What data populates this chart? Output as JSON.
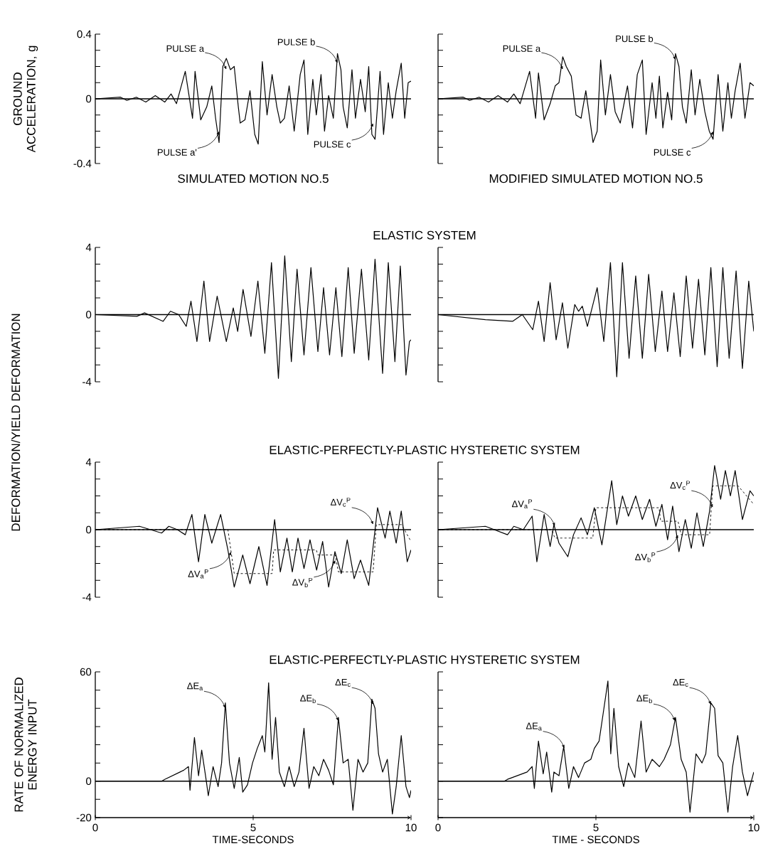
{
  "chart_data": [
    {
      "type": "line",
      "title": "SIMULATED MOTION NO.5",
      "ylabel": "GROUND ACCELERATION, g",
      "xlim": [
        0,
        10
      ],
      "ylim": [
        -0.4,
        0.4
      ],
      "yticks": [
        -0.4,
        {
          "value": -0.3,
          "label": null
        },
        {
          "value": -0.2,
          "label": null
        },
        {
          "value": -0.1,
          "label": null
        },
        0,
        {
          "value": 0.1,
          "label": null
        },
        {
          "value": 0.2,
          "label": null
        },
        {
          "value": 0.3,
          "label": null
        },
        0.4
      ],
      "tick_labels": "y",
      "ref_lines": [
        {
          "axis": "y",
          "value": 0
        }
      ],
      "annotations": [
        {
          "text": "PULSE a",
          "x": 4.15,
          "y": 0.18
        },
        {
          "text": "PULSE a'",
          "x": 3.92,
          "y": -0.2
        },
        {
          "text": "PULSE b",
          "x": 7.67,
          "y": 0.22
        },
        {
          "text": "PULSE c",
          "x": 8.8,
          "y": -0.15
        }
      ],
      "series": [
        {
          "color": "#000000",
          "x": [
            0,
            0.8,
            1.0,
            1.3,
            1.6,
            1.9,
            2.2,
            2.4,
            2.57,
            2.85,
            3.08,
            3.16,
            3.34,
            3.53,
            3.69,
            3.81,
            3.92,
            4.04,
            4.15,
            4.28,
            4.4,
            4.53,
            4.59,
            4.74,
            4.9,
            5.05,
            5.16,
            5.29,
            5.44,
            5.6,
            5.75,
            5.86,
            5.99,
            6.14,
            6.3,
            6.49,
            6.61,
            6.73,
            6.89,
            7.0,
            7.15,
            7.26,
            7.39,
            7.54,
            7.67,
            7.78,
            7.85,
            7.98,
            8.13,
            8.24,
            8.4,
            8.55,
            8.66,
            8.76,
            8.86,
            9.02,
            9.13,
            9.28,
            9.41,
            9.53,
            9.69,
            9.8,
            9.91,
            10
          ],
          "values": [
            0,
            0.01,
            -0.01,
            0.01,
            -0.02,
            0.02,
            -0.02,
            0.03,
            -0.03,
            0.17,
            -0.12,
            0.17,
            -0.13,
            -0.05,
            0.08,
            -0.12,
            -0.27,
            0.2,
            0.25,
            0.18,
            0.2,
            -0.05,
            -0.15,
            -0.13,
            0.05,
            -0.22,
            -0.28,
            0.23,
            -0.1,
            0.15,
            -0.05,
            -0.15,
            -0.12,
            0.08,
            -0.2,
            0.15,
            0.24,
            -0.22,
            0.12,
            -0.1,
            0.15,
            -0.2,
            0.02,
            -0.12,
            0.28,
            0.18,
            -0.05,
            -0.18,
            0.18,
            -0.12,
            0.12,
            -0.08,
            0.2,
            -0.22,
            -0.25,
            0.17,
            -0.22,
            0.1,
            -0.12,
            0.05,
            0.22,
            -0.12,
            0.1,
            0.11
          ]
        }
      ]
    },
    {
      "type": "line",
      "title": "MODIFIED SIMULATED MOTION NO.5",
      "xlim": [
        0,
        10
      ],
      "ylim": [
        -0.4,
        0.4
      ],
      "yticks": [
        -0.4,
        {
          "value": -0.3,
          "label": null
        },
        {
          "value": -0.2,
          "label": null
        },
        {
          "value": -0.1,
          "label": null
        },
        0,
        {
          "value": 0.1,
          "label": null
        },
        {
          "value": 0.2,
          "label": null
        },
        {
          "value": 0.3,
          "label": null
        },
        0.4
      ],
      "tick_labels": false,
      "ref_lines": [
        {
          "axis": "y",
          "value": 0
        }
      ],
      "annotations": [
        {
          "text": "PULSE a",
          "x": 3.95,
          "y": 0.18
        },
        {
          "text": "PULSE b",
          "x": 7.52,
          "y": 0.24
        },
        {
          "text": "PULSE c",
          "x": 8.71,
          "y": -0.2
        }
      ],
      "series": [
        {
          "color": "#000000",
          "x": [
            0,
            0.8,
            1.0,
            1.3,
            1.6,
            1.9,
            2.2,
            2.4,
            2.6,
            2.9,
            3.09,
            3.18,
            3.36,
            3.55,
            3.71,
            3.83,
            3.95,
            4.06,
            4.22,
            4.37,
            4.53,
            4.68,
            4.91,
            5.04,
            5.15,
            5.3,
            5.46,
            5.61,
            5.77,
            6.0,
            6.16,
            6.31,
            6.47,
            6.59,
            6.78,
            6.9,
            7.01,
            7.12,
            7.27,
            7.4,
            7.52,
            7.63,
            7.74,
            7.86,
            8.02,
            8.14,
            8.29,
            8.45,
            8.59,
            8.71,
            8.87,
            9.02,
            9.18,
            9.29,
            9.41,
            9.57,
            9.72,
            9.88,
            10
          ],
          "values": [
            0,
            0.01,
            -0.01,
            0.01,
            -0.02,
            0.02,
            -0.02,
            0.03,
            -0.03,
            0.17,
            -0.12,
            0.16,
            -0.13,
            -0.03,
            0.08,
            0.1,
            0.26,
            0.2,
            0.14,
            -0.1,
            -0.12,
            0.05,
            -0.27,
            -0.2,
            0.24,
            -0.1,
            0.15,
            -0.08,
            -0.15,
            0.08,
            -0.18,
            0.15,
            0.24,
            -0.22,
            0.1,
            -0.12,
            0.14,
            -0.18,
            0.04,
            -0.13,
            0.28,
            0.2,
            -0.05,
            -0.15,
            0.18,
            -0.1,
            0.12,
            -0.08,
            -0.2,
            -0.25,
            0.15,
            -0.2,
            0.1,
            -0.12,
            0.05,
            0.22,
            -0.12,
            0.1,
            0.08
          ]
        }
      ]
    },
    {
      "type": "line",
      "title": "ELASTIC SYSTEM",
      "ylabel": "DEFORMATION/YIELD DEFORMATION",
      "xlim": [
        0,
        10
      ],
      "ylim": [
        -4,
        4
      ],
      "yticks": [
        -4,
        {
          "value": -3,
          "label": null
        },
        {
          "value": -2,
          "label": null
        },
        {
          "value": -1,
          "label": null
        },
        0,
        {
          "value": 1,
          "label": null
        },
        {
          "value": 2,
          "label": null
        },
        {
          "value": 3,
          "label": null
        },
        4
      ],
      "tick_labels": "y",
      "ref_lines": [
        {
          "axis": "y",
          "value": 0
        }
      ],
      "series": [
        {
          "color": "#000000",
          "x": [
            0,
            1.32,
            1.56,
            2.15,
            2.38,
            2.64,
            2.88,
            3.03,
            3.22,
            3.44,
            3.62,
            3.86,
            4.15,
            4.37,
            4.51,
            4.68,
            4.93,
            5.15,
            5.37,
            5.58,
            5.8,
            6.0,
            6.21,
            6.39,
            6.61,
            6.83,
            7.05,
            7.23,
            7.42,
            7.62,
            7.81,
            8.01,
            8.2,
            8.43,
            8.66,
            8.86,
            9.1,
            9.28,
            9.49,
            9.66,
            9.84,
            9.95,
            10
          ],
          "values": [
            0,
            -0.1,
            0.1,
            -0.4,
            0.2,
            0,
            -0.7,
            0.8,
            -1.6,
            2.0,
            -1.6,
            1.1,
            -1.6,
            0.4,
            -1.0,
            1.5,
            -1.3,
            2.0,
            -2.3,
            3.1,
            -3.8,
            3.5,
            -2.8,
            2.7,
            -2.4,
            2.8,
            -2.2,
            1.6,
            -2.4,
            1.6,
            -2.5,
            2.8,
            -2.3,
            2.7,
            -2.7,
            3.3,
            -3.5,
            3.1,
            -2.8,
            2.9,
            -3.6,
            -1.6,
            -1.5
          ]
        }
      ]
    },
    {
      "type": "line",
      "xlim": [
        0,
        10
      ],
      "ylim": [
        -4,
        4
      ],
      "yticks": [
        -4,
        {
          "value": -3,
          "label": null
        },
        {
          "value": -2,
          "label": null
        },
        {
          "value": -1,
          "label": null
        },
        0,
        {
          "value": 1,
          "label": null
        },
        {
          "value": 2,
          "label": null
        },
        {
          "value": 3,
          "label": null
        },
        4
      ],
      "tick_labels": false,
      "ref_lines": [
        {
          "axis": "y",
          "value": 0
        }
      ],
      "series": [
        {
          "color": "#000000",
          "x": [
            0,
            1.5,
            2.36,
            2.67,
            3.0,
            3.18,
            3.36,
            3.55,
            3.74,
            3.94,
            4.11,
            4.33,
            4.45,
            4.57,
            4.73,
            5.04,
            5.25,
            5.46,
            5.66,
            5.84,
            6.05,
            6.26,
            6.47,
            6.67,
            6.88,
            7.09,
            7.27,
            7.47,
            7.67,
            7.86,
            8.06,
            8.25,
            8.45,
            8.64,
            8.84,
            9.02,
            9.22,
            9.44,
            9.64,
            9.84,
            10
          ],
          "values": [
            0,
            -0.3,
            -0.4,
            0,
            -0.9,
            0.8,
            -1.6,
            1.9,
            -1.5,
            0.7,
            -2.0,
            0.6,
            0.2,
            0.5,
            -0.7,
            1.6,
            -1.6,
            3.1,
            -3.7,
            3.1,
            -2.6,
            2.3,
            -2.6,
            2.4,
            -2.2,
            1.4,
            -2.2,
            1.3,
            -2.5,
            2.3,
            -2.0,
            2.1,
            -2.4,
            2.8,
            -3.1,
            2.8,
            -2.6,
            2.6,
            -3.2,
            2.0,
            -1.0
          ]
        }
      ]
    },
    {
      "type": "line",
      "title": "ELASTIC-PERFECTLY-PLASTIC HYSTERETIC SYSTEM",
      "xlim": [
        0,
        10
      ],
      "ylim": [
        -4,
        4
      ],
      "yticks": [
        -4,
        {
          "value": -3,
          "label": null
        },
        {
          "value": -2,
          "label": null
        },
        {
          "value": -1,
          "label": null
        },
        0,
        {
          "value": 1,
          "label": null
        },
        {
          "value": 2,
          "label": null
        },
        {
          "value": 3,
          "label": null
        },
        4
      ],
      "tick_labels": "y",
      "ref_lines": [
        {
          "axis": "y",
          "value": 0
        }
      ],
      "annotations": [
        {
          "text": "ΔV$_{a}$$^{P}$",
          "x": 4.3,
          "y": -1.3
        },
        {
          "text": "ΔV$_{b}$$^{P}$",
          "x": 7.6,
          "y": -1.8
        },
        {
          "text": "ΔV$_{c}$$^{P}$",
          "x": 8.8,
          "y": 0.3
        }
      ],
      "series": [
        {
          "color": "#000000",
          "x": [
            0,
            1.4,
            2.1,
            2.33,
            2.6,
            2.85,
            3.06,
            3.27,
            3.47,
            3.69,
            3.97,
            4.2,
            4.4,
            4.67,
            4.9,
            5.18,
            5.44,
            5.68,
            5.86,
            6.07,
            6.24,
            6.42,
            6.61,
            6.8,
            7.01,
            7.2,
            7.39,
            7.59,
            7.79,
            7.98,
            8.2,
            8.4,
            8.66,
            8.94,
            9.18,
            9.33,
            9.53,
            9.69,
            9.88,
            10
          ],
          "values": [
            0,
            0.2,
            -0.2,
            0.2,
            0,
            -0.3,
            0.9,
            -1.9,
            0.9,
            -0.8,
            0.9,
            -1.2,
            -3.4,
            -1.5,
            -3.2,
            -1.0,
            -3.3,
            0.6,
            -2.5,
            -0.5,
            -2.5,
            -0.5,
            -2.3,
            -0.6,
            -2.4,
            -0.7,
            -3.4,
            -1.3,
            -2.6,
            -0.6,
            -2.9,
            -1.8,
            -3.3,
            1.3,
            -0.5,
            1.1,
            -0.8,
            1.1,
            -1.9,
            -1.2
          ]
        },
        {
          "color": "#000000",
          "line_style": "dashed",
          "x": [
            0,
            4.2,
            4.4,
            5.6,
            5.65,
            7.0,
            7.05,
            7.6,
            7.7,
            8.8,
            8.9,
            9.7,
            10
          ],
          "values": [
            0,
            0,
            -2.6,
            -2.6,
            -1.2,
            -1.2,
            -1.5,
            -1.5,
            -2.5,
            -2.5,
            0.3,
            0.3,
            -0.7
          ]
        }
      ]
    },
    {
      "type": "line",
      "xlim": [
        0,
        10
      ],
      "ylim": [
        -4,
        4
      ],
      "yticks": [
        -4,
        {
          "value": -3,
          "label": null
        },
        {
          "value": -2,
          "label": null
        },
        {
          "value": -1,
          "label": null
        },
        0,
        {
          "value": 1,
          "label": null
        },
        {
          "value": 2,
          "label": null
        },
        {
          "value": 3,
          "label": null
        },
        4
      ],
      "tick_labels": false,
      "ref_lines": [
        {
          "axis": "y",
          "value": 0
        }
      ],
      "annotations": [
        {
          "text": "ΔV$_{a}$$^{P}$",
          "x": 3.7,
          "y": 0.2
        },
        {
          "text": "ΔV$_{b}$$^{P}$",
          "x": 7.6,
          "y": -0.3
        },
        {
          "text": "ΔV$_{c}$$^{P}$",
          "x": 8.7,
          "y": 1.3
        }
      ],
      "series": [
        {
          "color": "#000000",
          "x": [
            0,
            1.5,
            2.2,
            2.4,
            2.7,
            2.98,
            3.13,
            3.36,
            3.55,
            3.67,
            3.83,
            4.11,
            4.29,
            4.53,
            4.73,
            4.95,
            5.19,
            5.5,
            5.66,
            5.84,
            6.03,
            6.26,
            6.47,
            6.7,
            6.9,
            7.09,
            7.27,
            7.43,
            7.63,
            7.83,
            8.02,
            8.2,
            8.4,
            8.6,
            8.76,
            8.95,
            9.1,
            9.26,
            9.41,
            9.64,
            9.88,
            10
          ],
          "values": [
            0,
            0.2,
            -0.3,
            0.2,
            0,
            0.8,
            -1.9,
            0.9,
            -1.0,
            0.3,
            -0.8,
            -1.6,
            -0.3,
            0.7,
            -0.3,
            1.3,
            -0.9,
            2.9,
            0.3,
            2.0,
            0.8,
            2.0,
            0.6,
            1.8,
            0.2,
            1.5,
            -0.6,
            1.4,
            -1.3,
            0.6,
            -1.1,
            1.0,
            -1.0,
            1.1,
            3.8,
            1.8,
            3.5,
            2.0,
            3.5,
            0.6,
            2.3,
            2.0
          ]
        },
        {
          "color": "#000000",
          "line_style": "dashed",
          "x": [
            0,
            3.6,
            3.7,
            4.9,
            5.0,
            7.0,
            7.05,
            7.6,
            7.7,
            8.6,
            8.7,
            9.5,
            10
          ],
          "values": [
            0,
            0,
            -0.5,
            -0.5,
            1.3,
            1.3,
            0.5,
            0.5,
            -0.3,
            -0.3,
            2.6,
            2.6,
            1.5
          ]
        }
      ]
    },
    {
      "type": "line",
      "title": "ELASTIC-PERFECTLY-PLASTIC HYSTERETIC SYSTEM",
      "ylabel": "RATE OF NORMALIZED ENERGY INPUT",
      "xlabel": "TIME-SECONDS",
      "xlim": [
        0,
        10
      ],
      "ylim": [
        -20,
        60
      ],
      "xticks": [
        0,
        5,
        10
      ],
      "yticks": [
        -20,
        {
          "value": -10,
          "label": null
        },
        0,
        {
          "value": 10,
          "label": null
        },
        {
          "value": 20,
          "label": null
        },
        {
          "value": 30,
          "label": null
        },
        {
          "value": 40,
          "label": null
        },
        {
          "value": 50,
          "label": null
        },
        60
      ],
      "ref_lines": [
        {
          "axis": "y",
          "value": 0
        }
      ],
      "annotations": [
        {
          "text": "ΔE$_{a}$",
          "x": 4.12,
          "y": 40
        },
        {
          "text": "ΔE$_{b}$",
          "x": 7.7,
          "y": 33
        },
        {
          "text": "ΔE$_{c}$",
          "x": 8.8,
          "y": 42
        }
      ],
      "series": [
        {
          "color": "#000000",
          "x": [
            0,
            2.1,
            2.2,
            2.8,
            2.95,
            3.0,
            3.14,
            3.27,
            3.37,
            3.5,
            3.58,
            3.73,
            3.89,
            4.0,
            4.12,
            4.25,
            4.4,
            4.56,
            4.67,
            4.82,
            4.98,
            5.13,
            5.29,
            5.37,
            5.49,
            5.6,
            5.71,
            5.83,
            5.99,
            6.14,
            6.3,
            6.45,
            6.61,
            6.69,
            6.77,
            6.92,
            7.08,
            7.23,
            7.39,
            7.54,
            7.7,
            7.85,
            8.01,
            8.16,
            8.32,
            8.48,
            8.63,
            8.76,
            8.86,
            8.97,
            9.1,
            9.25,
            9.41,
            9.53,
            9.69,
            9.84,
            9.95,
            10
          ],
          "values": [
            0,
            0,
            1,
            6,
            8,
            -5,
            24,
            3,
            17,
            2,
            -8,
            8,
            -3,
            10,
            43,
            10,
            -4,
            13,
            -6,
            -2,
            10,
            18,
            25,
            16,
            54,
            12,
            35,
            5,
            -3,
            8,
            -3,
            5,
            29,
            12,
            -4,
            8,
            3,
            12,
            6,
            -2,
            35,
            10,
            12,
            -16,
            12,
            5,
            10,
            45,
            40,
            15,
            5,
            12,
            -18,
            -3,
            25,
            -3,
            -9,
            -5
          ]
        }
      ]
    },
    {
      "type": "line",
      "xlabel": "TIME - SECONDS",
      "xlim": [
        0,
        10
      ],
      "ylim": [
        -20,
        60
      ],
      "xticks": [
        0,
        5,
        10
      ],
      "yticks": [
        -20,
        {
          "value": -10,
          "label": null
        },
        0,
        {
          "value": 10,
          "label": null
        },
        {
          "value": 20,
          "label": null
        },
        {
          "value": 30,
          "label": null
        },
        {
          "value": 40,
          "label": null
        },
        {
          "value": 50,
          "label": null
        },
        60
      ],
      "tick_labels": "x",
      "ref_lines": [
        {
          "axis": "y",
          "value": 0
        }
      ],
      "annotations": [
        {
          "text": "ΔE$_{a}$",
          "x": 4.0,
          "y": 18
        },
        {
          "text": "ΔE$_{b}$",
          "x": 7.5,
          "y": 33
        },
        {
          "text": "ΔE$_{c}$",
          "x": 8.64,
          "y": 42
        }
      ],
      "series": [
        {
          "color": "#000000",
          "x": [
            0,
            2.1,
            2.2,
            2.82,
            2.98,
            3.05,
            3.18,
            3.33,
            3.44,
            3.6,
            3.67,
            3.83,
            3.98,
            4.14,
            4.29,
            4.45,
            4.64,
            4.84,
            4.95,
            5.1,
            5.22,
            5.38,
            5.47,
            5.57,
            5.72,
            5.88,
            6.03,
            6.23,
            6.43,
            6.59,
            6.78,
            7.01,
            7.16,
            7.36,
            7.52,
            7.7,
            7.86,
            7.98,
            8.17,
            8.36,
            8.48,
            8.64,
            8.76,
            8.87,
            9.02,
            9.18,
            9.33,
            9.49,
            9.64,
            9.8,
            10
          ],
          "values": [
            0,
            0,
            1,
            5,
            8,
            -4,
            22,
            4,
            16,
            -6,
            5,
            3,
            19,
            -4,
            8,
            2,
            10,
            12,
            18,
            22,
            36,
            55,
            15,
            40,
            8,
            -3,
            10,
            2,
            33,
            5,
            12,
            8,
            12,
            20,
            35,
            12,
            5,
            -17,
            15,
            10,
            15,
            43,
            40,
            14,
            10,
            -17,
            8,
            25,
            5,
            -8,
            5
          ]
        }
      ]
    }
  ]
}
